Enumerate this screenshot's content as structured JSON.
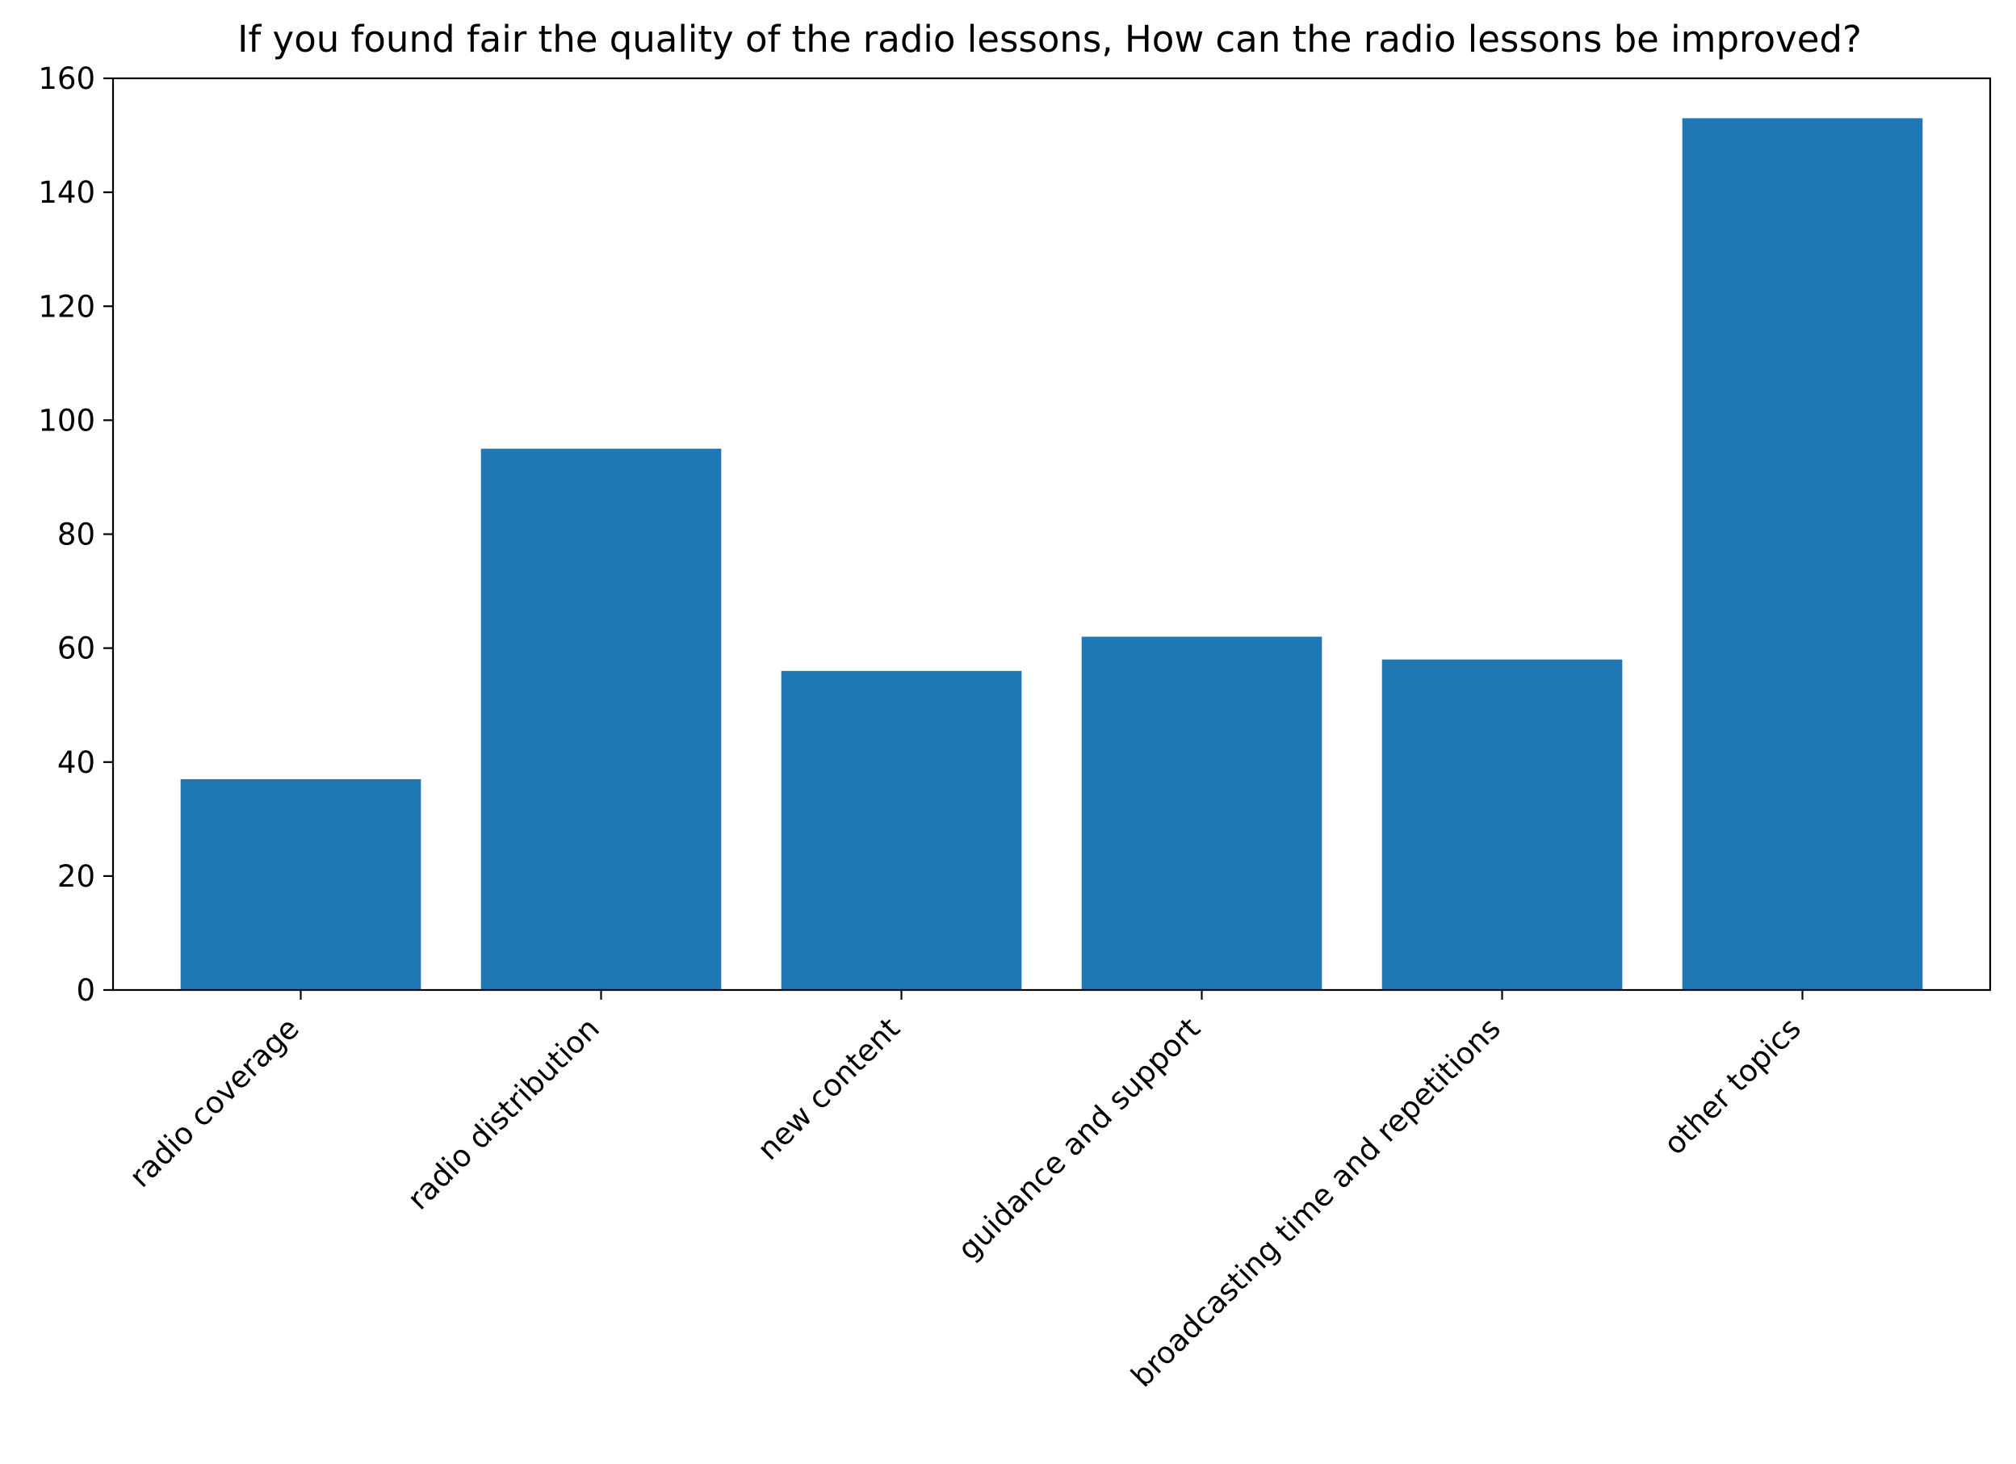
{
  "chart_data": {
    "type": "bar",
    "title": "If you found fair the quality of the radio lessons, How can the radio lessons be improved?",
    "xlabel": "",
    "ylabel": "",
    "categories": [
      "radio coverage",
      "radio distribution",
      "new content",
      "guidance and support",
      "broadcasting time and repetitions",
      "other topics"
    ],
    "values": [
      37,
      95,
      56,
      62,
      58,
      153
    ],
    "ylim": [
      0,
      160
    ],
    "yticks": [
      0,
      20,
      40,
      60,
      80,
      100,
      120,
      140,
      160
    ],
    "grid": false,
    "legend": false,
    "bar_color": "#1f77b4",
    "axis_color": "#000000"
  }
}
